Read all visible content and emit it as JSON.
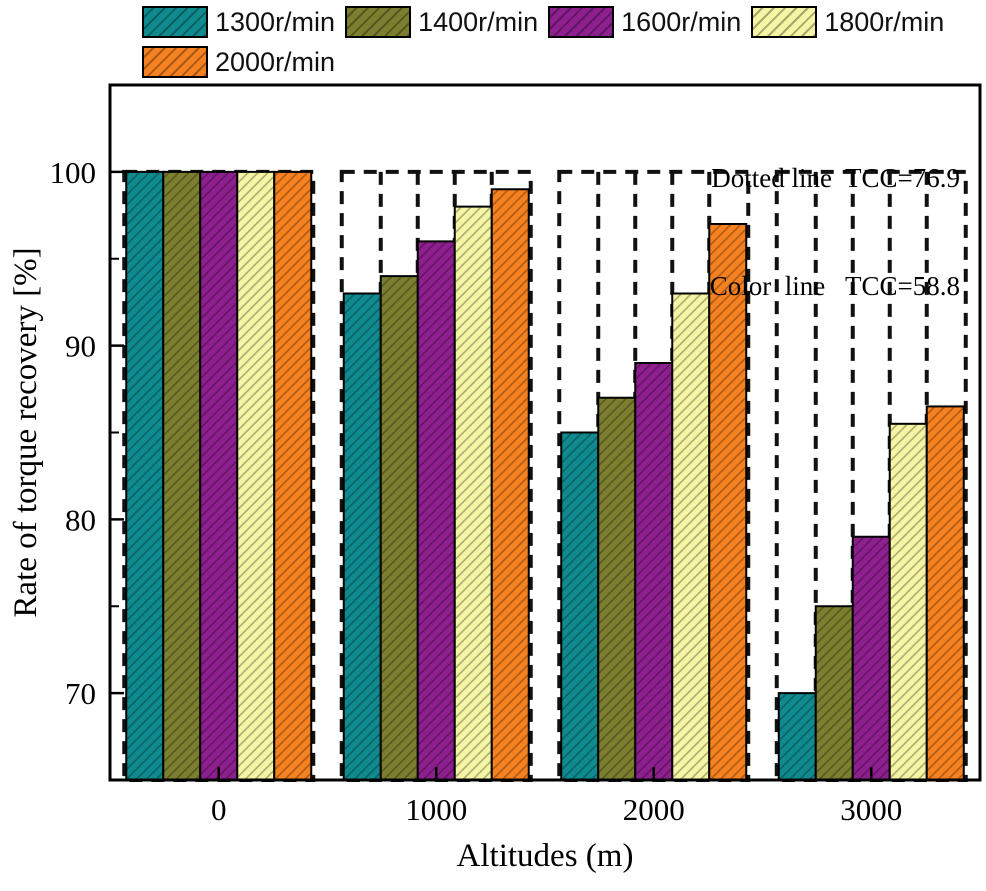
{
  "annotation": {
    "line1": "Dotted line  TCC=76.9",
    "line2": "Color  line   TCC=58.8"
  },
  "chart_data": {
    "type": "bar",
    "title": "",
    "xlabel": "Altitudes (m)",
    "ylabel": "Rate of torque recovery [%]",
    "categories": [
      "0",
      "1000",
      "2000",
      "3000"
    ],
    "series": [
      {
        "name": "1300r/min",
        "color": "#0f8b8f",
        "values": [
          100,
          93,
          85,
          70
        ]
      },
      {
        "name": "1400r/min",
        "color": "#7c7f2f",
        "values": [
          100,
          94,
          87,
          75
        ]
      },
      {
        "name": "1600r/min",
        "color": "#8e1f8e",
        "values": [
          100,
          96,
          89,
          79
        ]
      },
      {
        "name": "1800r/min",
        "color": "#f5f5a4",
        "values": [
          100,
          98,
          93,
          85.5
        ]
      },
      {
        "name": "2000r/min",
        "color": "#f68120",
        "values": [
          100,
          99,
          97,
          86.5
        ]
      }
    ],
    "ylim": [
      65,
      105
    ],
    "yticks": [
      70,
      80,
      90,
      100
    ],
    "grid": false,
    "legend_position": "top-left",
    "bar_hatch": "diagonal",
    "reference_bars": {
      "style": "dashed",
      "value": 100,
      "meaning": "TCC=76.9 reference outline at 100%"
    }
  }
}
